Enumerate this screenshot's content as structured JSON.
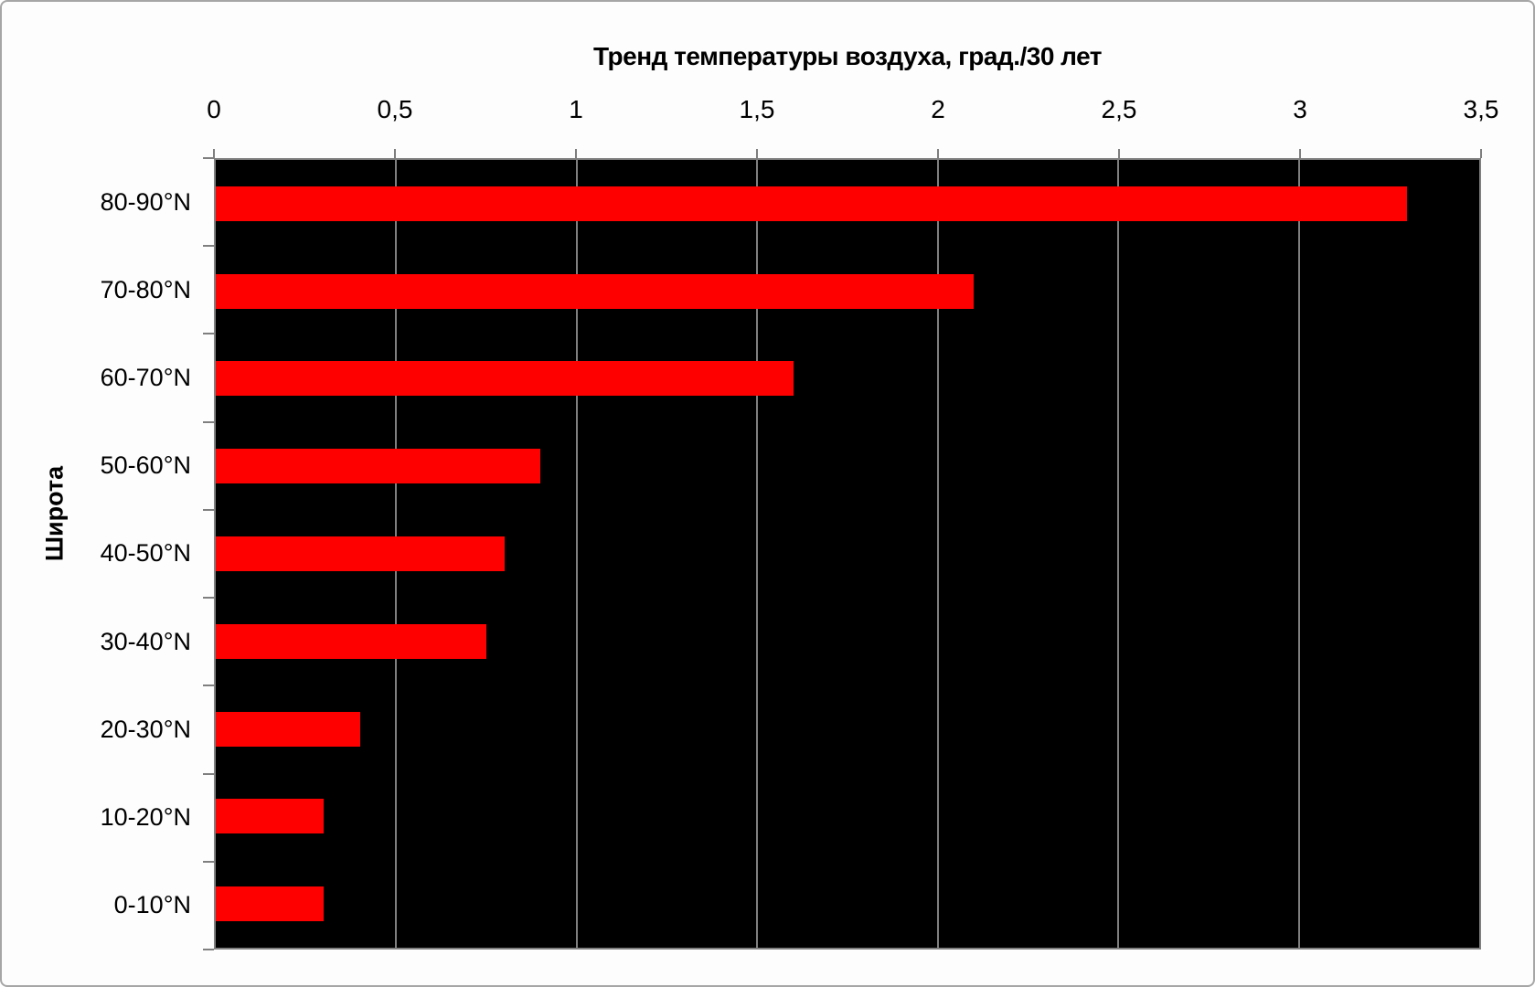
{
  "chart_data": {
    "type": "bar",
    "orientation": "horizontal",
    "title": "Тренд температуры воздуха, град./30 лет",
    "ylabel": "Широта",
    "categories": [
      "80-90°N",
      "70-80°N",
      "60-70°N",
      "50-60°N",
      "40-50°N",
      "30-40°N",
      "20-30°N",
      "10-20°N",
      "0-10°N"
    ],
    "values": [
      3.3,
      2.1,
      1.6,
      0.9,
      0.8,
      0.75,
      0.4,
      0.3,
      0.3
    ],
    "xlim": [
      0,
      3.5
    ],
    "xticks": [
      0,
      0.5,
      1,
      1.5,
      2,
      2.5,
      3,
      3.5
    ],
    "xtick_labels": [
      "0",
      "0,5",
      "1",
      "1,5",
      "2",
      "2,5",
      "3",
      "3,5"
    ],
    "grid": true,
    "legend": "none",
    "colors": {
      "bar": "#FF0000",
      "plot_bg": "#000000",
      "gridline": "#7F7F7F",
      "axis": "#7F7F7F",
      "page_bg": "#FDFDFD",
      "frame_border": "#A6A6A6",
      "text": "#000000"
    }
  }
}
